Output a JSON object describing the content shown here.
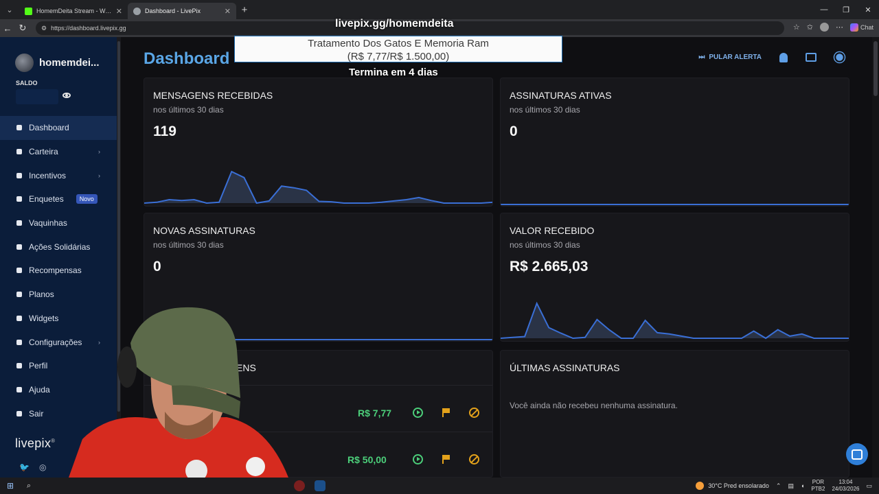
{
  "browser": {
    "tabs": [
      {
        "label": "HomemDeita Stream - Watch Live",
        "active": false,
        "favicon_color": "#53fc18"
      },
      {
        "label": "Dashboard - LivePix",
        "active": true,
        "favicon_color": "#9aa0a6"
      }
    ],
    "url": "https://dashboard.livepix.gg",
    "chat_label": "Chat"
  },
  "sidebar": {
    "username": "homemdei...",
    "balance_label": "SALDO",
    "items": [
      {
        "label": "Dashboard",
        "icon": "dashboard-icon",
        "active": true
      },
      {
        "label": "Carteira",
        "icon": "wallet-icon",
        "chevron": true
      },
      {
        "label": "Incentivos",
        "icon": "sparkles-icon",
        "chevron": true
      },
      {
        "label": "Enquetes",
        "icon": "poll-icon",
        "badge": "Novo"
      },
      {
        "label": "Vaquinhas",
        "icon": "piggy-bank-icon"
      },
      {
        "label": "Ações Solidárias",
        "icon": "heart-hands-icon"
      },
      {
        "label": "Recompensas",
        "icon": "gift-icon"
      },
      {
        "label": "Planos",
        "icon": "plans-icon"
      },
      {
        "label": "Widgets",
        "icon": "widgets-icon"
      },
      {
        "label": "Configurações",
        "icon": "gear-icon",
        "chevron": true
      },
      {
        "label": "Perfil",
        "icon": "user-icon"
      },
      {
        "label": "Ajuda",
        "icon": "help-icon"
      },
      {
        "label": "Sair",
        "icon": "logout-icon"
      }
    ],
    "logo": "livepix",
    "logo_mark": "®"
  },
  "header": {
    "title": "Dashboard",
    "skip_alert": "PULAR ALERTA"
  },
  "cards": {
    "messages": {
      "title": "MENSAGENS RECEBIDAS",
      "subtitle": "nos últimos 30 dias",
      "value": "119"
    },
    "active_subs": {
      "title": "ASSINATURAS ATIVAS",
      "subtitle": "nos últimos 30 dias",
      "value": "0"
    },
    "new_subs": {
      "title": "NOVAS ASSINATURAS",
      "subtitle": "nos últimos 30 dias",
      "value": "0"
    },
    "received": {
      "title": "VALOR RECEBIDO",
      "subtitle": "nos últimos 30 dias",
      "value": "R$ 2.665,03"
    },
    "latest_messages": {
      "title_visible": "ENS",
      "rows": [
        {
          "amount": "R$ 7,77"
        },
        {
          "amount": "R$ 50,00"
        }
      ]
    },
    "latest_subs": {
      "title": "ÚLTIMAS ASSINATURAS",
      "empty": "Você ainda não recebeu nenhuma assinatura."
    }
  },
  "sparklines": {
    "messages": [
      0.0,
      0.02,
      0.08,
      0.06,
      0.08,
      0.0,
      0.02,
      0.74,
      0.6,
      0.0,
      0.05,
      0.4,
      0.36,
      0.3,
      0.04,
      0.03,
      0.0,
      0.0,
      0.0,
      0.02,
      0.05,
      0.08,
      0.13,
      0.06,
      0.0,
      0.0,
      0.0,
      0.0,
      0.02
    ],
    "received": [
      0.0,
      0.02,
      0.04,
      0.82,
      0.25,
      0.12,
      0.0,
      0.02,
      0.44,
      0.2,
      0.0,
      0.0,
      0.42,
      0.13,
      0.1,
      0.05,
      0.0,
      0.0,
      0.0,
      0.0,
      0.0,
      0.17,
      0.0,
      0.2,
      0.05,
      0.1,
      0.0,
      0.0,
      0.0,
      0.0
    ],
    "line_color": "#3a6fd6",
    "fill_color": "#2a3346"
  },
  "overlay": {
    "url": "livepix.gg/homemdeita",
    "goal_title": "Tratamento Dos Gatos E Memoria Ram",
    "goal_amount": "(R$ 7,77/R$ 1.500,00)",
    "ends": "Termina em 4 dias"
  },
  "taskbar": {
    "weather": "30°C  Pred ensolarado",
    "lang_line1": "POR",
    "lang_line2": "PTB2",
    "time": "13:04",
    "date": "24/03/2026"
  }
}
